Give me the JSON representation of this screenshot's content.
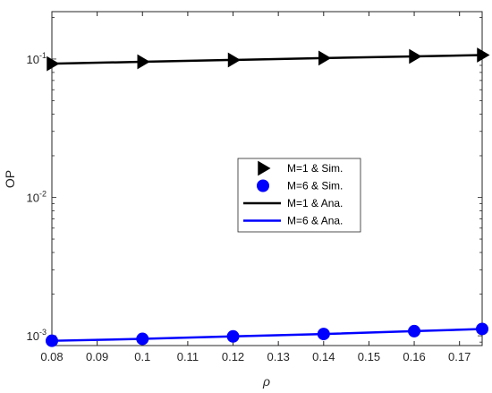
{
  "chart_data": {
    "type": "line",
    "title": "",
    "xlabel": "ρ",
    "ylabel": "OP",
    "xlim": [
      0.08,
      0.175
    ],
    "ylim": [
      0.00085,
      0.22
    ],
    "yscale": "log",
    "grid": false,
    "legend_position": "center",
    "x_ticks": [
      {
        "value": 0.08,
        "label": "0.08"
      },
      {
        "value": 0.09,
        "label": "0.09"
      },
      {
        "value": 0.1,
        "label": "0.1"
      },
      {
        "value": 0.11,
        "label": "0.11"
      },
      {
        "value": 0.12,
        "label": "0.12"
      },
      {
        "value": 0.13,
        "label": "0.13"
      },
      {
        "value": 0.14,
        "label": "0.14"
      },
      {
        "value": 0.15,
        "label": "0.15"
      },
      {
        "value": 0.16,
        "label": "0.16"
      },
      {
        "value": 0.17,
        "label": "0.17"
      }
    ],
    "y_ticks": [
      {
        "value": 0.001,
        "base": "10",
        "exponent": "-3"
      },
      {
        "value": 0.01,
        "base": "10",
        "exponent": "-2"
      },
      {
        "value": 0.1,
        "base": "10",
        "exponent": "-1"
      }
    ],
    "series": [
      {
        "name": "M=1 & Sim.",
        "kind": "markers",
        "marker": "triangle-right",
        "color": "#000000",
        "x": [
          0.08,
          0.1,
          0.12,
          0.14,
          0.16,
          0.175
        ],
        "values": [
          0.0925,
          0.0955,
          0.0985,
          0.1015,
          0.1045,
          0.1068
        ]
      },
      {
        "name": "M=6 & Sim.",
        "kind": "markers",
        "marker": "circle",
        "color": "#0000ff",
        "x": [
          0.08,
          0.1,
          0.12,
          0.14,
          0.16,
          0.175
        ],
        "values": [
          0.00092,
          0.00095,
          0.00099,
          0.00103,
          0.00108,
          0.00112
        ]
      },
      {
        "name": "M=1 & Ana.",
        "kind": "line",
        "color": "#000000",
        "x": [
          0.08,
          0.1,
          0.12,
          0.14,
          0.16,
          0.175
        ],
        "values": [
          0.0925,
          0.0955,
          0.0985,
          0.1015,
          0.1045,
          0.1068
        ]
      },
      {
        "name": "M=6 & Ana.",
        "kind": "line",
        "color": "#0000ff",
        "x": [
          0.08,
          0.1,
          0.12,
          0.14,
          0.16,
          0.175
        ],
        "values": [
          0.00092,
          0.00095,
          0.00099,
          0.00103,
          0.00108,
          0.00112
        ]
      }
    ]
  }
}
